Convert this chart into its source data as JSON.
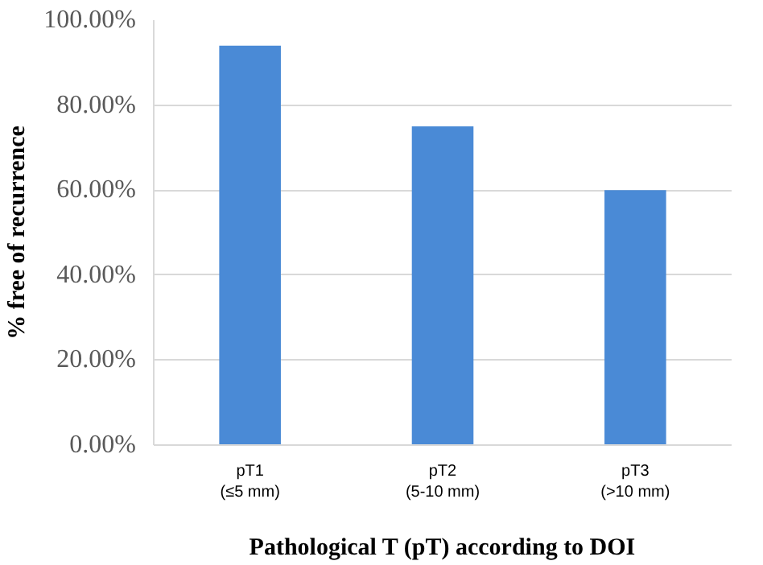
{
  "chart_data": {
    "type": "bar",
    "xlabel": "Pathological T (pT) according to DOI",
    "ylabel": "% free of recurrence",
    "categories": [
      "pT1\n(≤5 mm)",
      "pT2\n(5-10 mm)",
      "pT3\n(>10 mm)"
    ],
    "values": [
      94,
      75,
      60
    ],
    "color": "#4a8ad6",
    "ylim": [
      0,
      100
    ],
    "yticks": [
      {
        "value": 0,
        "label": "0.00%"
      },
      {
        "value": 20,
        "label": "20.00%"
      },
      {
        "value": 40,
        "label": "40.00%"
      },
      {
        "value": 60,
        "label": "60.00%"
      },
      {
        "value": 80,
        "label": "80.00%"
      },
      {
        "value": 100,
        "label": "100.00%"
      }
    ],
    "grid": "y"
  }
}
